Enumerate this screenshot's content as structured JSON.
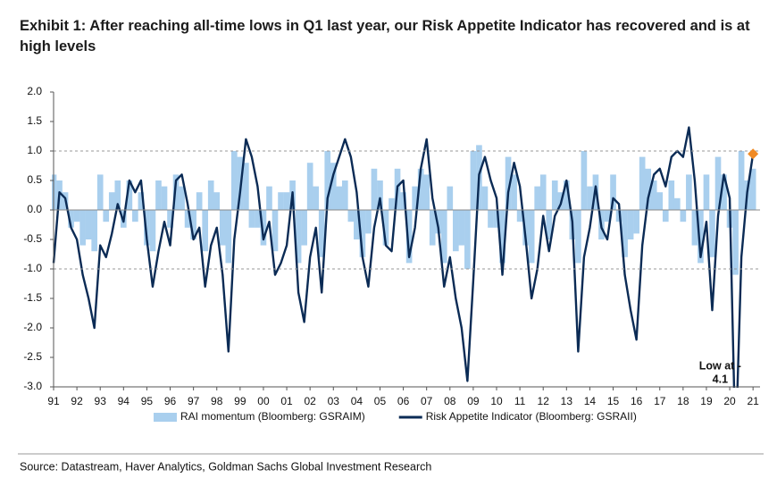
{
  "chart_data": {
    "type": "line",
    "title": "Exhibit 1: After reaching all-time lows in Q1 last year, our Risk Appetite Indicator has recovered and is at high levels",
    "source": "Source: Datastream, Haver Analytics, Goldman Sachs Global Investment Research",
    "annotation": [
      "Low at -",
      "4.1"
    ],
    "x": [
      1991,
      1991.25,
      1991.5,
      1991.75,
      1992,
      1992.25,
      1992.5,
      1992.75,
      1993,
      1993.25,
      1993.5,
      1993.75,
      1994,
      1994.25,
      1994.5,
      1994.75,
      1995,
      1995.25,
      1995.5,
      1995.75,
      1996,
      1996.25,
      1996.5,
      1996.75,
      1997,
      1997.25,
      1997.5,
      1997.75,
      1998,
      1998.25,
      1998.5,
      1998.75,
      1999,
      1999.25,
      1999.5,
      1999.75,
      2000,
      2000.25,
      2000.5,
      2000.75,
      2001,
      2001.25,
      2001.5,
      2001.75,
      2002,
      2002.25,
      2002.5,
      2002.75,
      2003,
      2003.25,
      2003.5,
      2003.75,
      2004,
      2004.25,
      2004.5,
      2004.75,
      2005,
      2005.25,
      2005.5,
      2005.75,
      2006,
      2006.25,
      2006.5,
      2006.75,
      2007,
      2007.25,
      2007.5,
      2007.75,
      2008,
      2008.25,
      2008.5,
      2008.75,
      2009,
      2009.25,
      2009.5,
      2009.75,
      2010,
      2010.25,
      2010.5,
      2010.75,
      2011,
      2011.25,
      2011.5,
      2011.75,
      2012,
      2012.25,
      2012.5,
      2012.75,
      2013,
      2013.25,
      2013.5,
      2013.75,
      2014,
      2014.25,
      2014.5,
      2014.75,
      2015,
      2015.25,
      2015.5,
      2015.75,
      2016,
      2016.25,
      2016.5,
      2016.75,
      2017,
      2017.25,
      2017.5,
      2017.75,
      2018,
      2018.25,
      2018.5,
      2018.75,
      2019,
      2019.25,
      2019.5,
      2019.75,
      2020,
      2020.25,
      2020.5,
      2020.75,
      2021
    ],
    "series": [
      {
        "name": "RAI momentum (Bloomberg: GSRAIM)",
        "color": "#a9cfee",
        "style": "bars",
        "values": [
          0.6,
          0.5,
          0.3,
          -0.3,
          -0.2,
          -0.6,
          -0.5,
          -0.7,
          0.6,
          -0.2,
          0.3,
          0.5,
          -0.3,
          0.5,
          -0.2,
          0.3,
          -0.6,
          -0.7,
          0.5,
          0.4,
          -0.3,
          0.6,
          0.4,
          -0.3,
          -0.5,
          0.3,
          -0.7,
          0.5,
          0.3,
          -0.6,
          -0.9,
          1.0,
          0.9,
          0.8,
          -0.3,
          -0.3,
          -0.6,
          0.4,
          -0.7,
          0.3,
          0.3,
          0.5,
          -0.9,
          -0.6,
          0.8,
          0.4,
          -0.8,
          1.0,
          0.8,
          0.4,
          0.5,
          -0.2,
          -0.5,
          -0.8,
          -0.4,
          0.7,
          0.5,
          -0.6,
          0.2,
          0.7,
          0.3,
          -0.9,
          0.4,
          0.7,
          0.6,
          -0.6,
          -0.4,
          -0.9,
          0.4,
          -0.7,
          -0.6,
          -1.0,
          1.0,
          1.1,
          0.4,
          -0.3,
          -0.3,
          -0.9,
          0.9,
          0.6,
          -0.2,
          -0.6,
          -0.9,
          0.4,
          0.6,
          -0.5,
          0.5,
          0.3,
          0.5,
          -0.5,
          -0.9,
          1.0,
          0.4,
          0.6,
          -0.5,
          -0.2,
          0.6,
          -0.2,
          -0.8,
          -0.5,
          -0.4,
          0.9,
          0.7,
          0.5,
          0.3,
          -0.2,
          0.5,
          0.2,
          -0.2,
          0.6,
          -0.6,
          -0.9,
          0.6,
          -0.8,
          0.9,
          0.6,
          -0.3,
          -1.1,
          1.0,
          0.5,
          0.7
        ]
      },
      {
        "name": "Risk Appetite Indicator (Bloomberg: GSRAII)",
        "color": "#0b2b55",
        "style": "line",
        "last_marker_color": "#f08a24",
        "values": [
          -0.9,
          0.3,
          0.2,
          -0.3,
          -0.5,
          -1.1,
          -1.5,
          -2.0,
          -0.6,
          -0.8,
          -0.4,
          0.1,
          -0.2,
          0.5,
          0.3,
          0.5,
          -0.5,
          -1.3,
          -0.7,
          -0.2,
          -0.6,
          0.5,
          0.6,
          0.1,
          -0.5,
          -0.3,
          -1.3,
          -0.6,
          -0.3,
          -1.1,
          -2.4,
          -0.5,
          0.3,
          1.2,
          0.9,
          0.4,
          -0.5,
          -0.2,
          -1.1,
          -0.9,
          -0.6,
          0.3,
          -1.4,
          -1.9,
          -0.8,
          -0.3,
          -1.4,
          0.2,
          0.6,
          0.9,
          1.2,
          0.9,
          0.3,
          -0.8,
          -1.3,
          -0.3,
          0.2,
          -0.6,
          -0.7,
          0.4,
          0.5,
          -0.8,
          -0.3,
          0.7,
          1.2,
          0.2,
          -0.3,
          -1.3,
          -0.8,
          -1.5,
          -2.0,
          -2.9,
          -1.2,
          0.6,
          0.9,
          0.5,
          0.2,
          -1.1,
          0.3,
          0.8,
          0.4,
          -0.5,
          -1.5,
          -1.0,
          -0.1,
          -0.7,
          -0.1,
          0.1,
          0.5,
          -0.2,
          -2.4,
          -0.8,
          -0.3,
          0.4,
          -0.3,
          -0.5,
          0.2,
          0.1,
          -1.1,
          -1.7,
          -2.2,
          -0.6,
          0.2,
          0.6,
          0.7,
          0.4,
          0.9,
          1.0,
          0.9,
          1.4,
          0.5,
          -0.8,
          -0.2,
          -1.7,
          -0.1,
          0.6,
          0.2,
          -4.1,
          -0.8,
          0.3,
          0.95
        ]
      }
    ],
    "reference_lines": [
      1,
      -1
    ],
    "legend": "bottom",
    "xlim": [
      1991,
      2021.3
    ],
    "xticks": [
      {
        "value": 1991,
        "label": "91"
      },
      {
        "value": 1992,
        "label": "92"
      },
      {
        "value": 1993,
        "label": "93"
      },
      {
        "value": 1994,
        "label": "94"
      },
      {
        "value": 1995,
        "label": "95"
      },
      {
        "value": 1996,
        "label": "96"
      },
      {
        "value": 1997,
        "label": "97"
      },
      {
        "value": 1998,
        "label": "98"
      },
      {
        "value": 1999,
        "label": "99"
      },
      {
        "value": 2000,
        "label": "00"
      },
      {
        "value": 2001,
        "label": "01"
      },
      {
        "value": 2002,
        "label": "02"
      },
      {
        "value": 2003,
        "label": "03"
      },
      {
        "value": 2004,
        "label": "04"
      },
      {
        "value": 2005,
        "label": "05"
      },
      {
        "value": 2006,
        "label": "06"
      },
      {
        "value": 2007,
        "label": "07"
      },
      {
        "value": 2008,
        "label": "08"
      },
      {
        "value": 2009,
        "label": "09"
      },
      {
        "value": 2010,
        "label": "10"
      },
      {
        "value": 2011,
        "label": "11"
      },
      {
        "value": 2012,
        "label": "12"
      },
      {
        "value": 2013,
        "label": "13"
      },
      {
        "value": 2014,
        "label": "14"
      },
      {
        "value": 2015,
        "label": "15"
      },
      {
        "value": 2016,
        "label": "16"
      },
      {
        "value": 2017,
        "label": "17"
      },
      {
        "value": 2018,
        "label": "18"
      },
      {
        "value": 2019,
        "label": "19"
      },
      {
        "value": 2020,
        "label": "20"
      },
      {
        "value": 2021,
        "label": "21"
      }
    ],
    "ylim": [
      -3,
      2
    ],
    "yticks": [
      {
        "value": 2,
        "label": "2.0"
      },
      1.5,
      {
        "value": 1,
        "label": "1.0"
      },
      0.5,
      {
        "value": 0,
        "label": "0.0"
      },
      -0.5,
      {
        "value": -1,
        "label": "-1.0"
      },
      -1.5,
      {
        "value": -2,
        "label": "-2.0"
      },
      -2.5,
      {
        "value": -3,
        "label": "-3.0"
      }
    ]
  }
}
